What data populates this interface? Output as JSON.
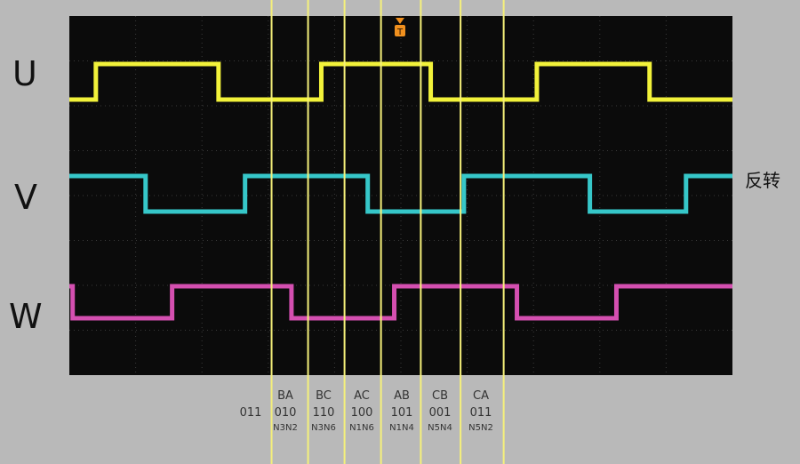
{
  "channel_labels": {
    "u": "U",
    "v": "V",
    "w": "W"
  },
  "side_note": "反转",
  "trigger_marker": "T",
  "colors": {
    "background": "#b9b9b9",
    "screen": "#0b0b0b",
    "grid": "#3a3a3a",
    "u_trace": "#f2f23a",
    "v_trace": "#36c7c9",
    "w_trace": "#d44fb0",
    "marker_lines": "#f5f07a",
    "trigger": "#f0901e"
  },
  "codes": [
    {
      "pair": "",
      "bits": "011",
      "switches": ""
    },
    {
      "pair": "BA",
      "bits": "010",
      "switches": "N3N2"
    },
    {
      "pair": "BC",
      "bits": "110",
      "switches": "N3N6"
    },
    {
      "pair": "AC",
      "bits": "100",
      "switches": "N1N6"
    },
    {
      "pair": "AB",
      "bits": "101",
      "switches": "N1N4"
    },
    {
      "pair": "CB",
      "bits": "001",
      "switches": "N5N4"
    },
    {
      "pair": "CA",
      "bits": "011",
      "switches": "N5N2"
    }
  ],
  "chart_data": {
    "type": "line",
    "x_range": [
      0,
      10
    ],
    "grid": true,
    "series": [
      {
        "name": "U",
        "start_level": 0,
        "transitions": [
          0.4,
          2.25,
          3.8,
          5.45,
          7.05,
          8.75,
          10
        ]
      },
      {
        "name": "V",
        "start_level": 1,
        "transitions": [
          1.15,
          2.65,
          4.5,
          5.95,
          7.85,
          9.3,
          10
        ]
      },
      {
        "name": "W",
        "start_level": 1,
        "transitions": [
          0.05,
          1.55,
          3.35,
          4.9,
          6.75,
          8.25,
          10
        ]
      }
    ],
    "markers_x": [
      3.05,
      3.6,
      4.15,
      4.7,
      5.3,
      5.9,
      6.55
    ]
  }
}
